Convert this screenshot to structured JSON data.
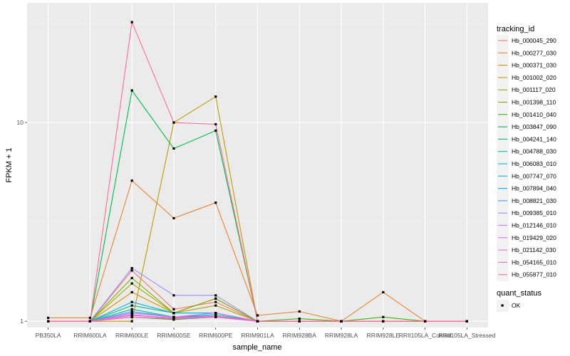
{
  "chart_data": {
    "type": "line",
    "xlabel": "sample_name",
    "ylabel": "FPKM + 1",
    "y_scale": "log10",
    "ylim": [
      0.93,
      40
    ],
    "y_ticks": [
      1,
      10
    ],
    "y_tick_labels": [
      "1",
      "10"
    ],
    "grid": true,
    "legend_position": "right",
    "categories": [
      "PB350LA",
      "RRIM600LA",
      "RRIM600LE",
      "RRIM600SE",
      "RRIM600PE",
      "RRIM901LA",
      "RRIM928BA",
      "RRIM928LA",
      "RRIM928LE",
      "RRII105LA_Control",
      "RRII105LA_Stressed"
    ],
    "color_legend_title": "tracking_id",
    "shape_legend_title": "quant_status",
    "shape_legend_items": [
      "OK"
    ],
    "series": [
      {
        "name": "Hb_000045_290",
        "color": "#F8766D",
        "values": [
          1.0,
          1.0,
          1.8,
          1.15,
          1.25,
          1.0,
          1.0,
          1.0,
          1.0,
          1.0,
          1.0
        ]
      },
      {
        "name": "Hb_000277_030",
        "color": "#EA8331",
        "values": [
          1.04,
          1.04,
          5.1,
          3.3,
          3.95,
          1.07,
          1.12,
          1.0,
          1.4,
          1.0,
          1.0
        ]
      },
      {
        "name": "Hb_000371_030",
        "color": "#D89000",
        "values": [
          1.0,
          1.0,
          1.4,
          1.1,
          1.3,
          1.0,
          1.0,
          1.0,
          1.0,
          1.0,
          1.0
        ]
      },
      {
        "name": "Hb_001002_020",
        "color": "#C09B00",
        "values": [
          1.0,
          1.0,
          1.0,
          10.0,
          13.5,
          1.0,
          1.0,
          1.0,
          1.0,
          1.0,
          1.0
        ]
      },
      {
        "name": "Hb_001117_020",
        "color": "#A3A500",
        "values": [
          1.0,
          1.0,
          1.55,
          1.1,
          1.2,
          1.0,
          1.0,
          1.0,
          1.0,
          1.0,
          1.0
        ]
      },
      {
        "name": "Hb_001398_110",
        "color": "#7CAE00",
        "values": [
          1.0,
          1.0,
          1.65,
          1.1,
          1.3,
          1.0,
          1.0,
          1.0,
          1.0,
          1.0,
          1.0
        ]
      },
      {
        "name": "Hb_001410_040",
        "color": "#39B600",
        "values": [
          1.0,
          1.0,
          1.05,
          1.02,
          1.05,
          1.0,
          1.03,
          1.0,
          1.05,
          1.0,
          1.0
        ]
      },
      {
        "name": "Hb_003847_090",
        "color": "#00BB4E",
        "values": [
          1.0,
          1.0,
          14.5,
          7.4,
          9.1,
          1.0,
          1.0,
          1.0,
          1.0,
          1.0,
          1.0
        ]
      },
      {
        "name": "Hb_004241_140",
        "color": "#00BF7D",
        "values": [
          1.0,
          1.0,
          1.2,
          1.1,
          1.1,
          1.0,
          1.0,
          1.0,
          1.0,
          1.0,
          1.0
        ]
      },
      {
        "name": "Hb_004788_030",
        "color": "#00C1A3",
        "values": [
          1.0,
          1.0,
          1.15,
          1.05,
          1.08,
          1.0,
          1.0,
          1.0,
          1.0,
          1.0,
          1.0
        ]
      },
      {
        "name": "Hb_006083_010",
        "color": "#00BFC4",
        "values": [
          1.0,
          1.0,
          1.1,
          1.05,
          1.06,
          1.0,
          1.0,
          1.0,
          1.0,
          1.0,
          1.0
        ]
      },
      {
        "name": "Hb_007747_070",
        "color": "#00BAE0",
        "values": [
          1.0,
          1.0,
          1.1,
          1.05,
          1.06,
          1.0,
          1.0,
          1.0,
          1.0,
          1.0,
          1.0
        ]
      },
      {
        "name": "Hb_007894_040",
        "color": "#00B0F6",
        "values": [
          1.0,
          1.0,
          1.25,
          1.1,
          1.1,
          1.0,
          1.0,
          1.0,
          1.0,
          1.0,
          1.0
        ]
      },
      {
        "name": "Hb_008821_030",
        "color": "#35A2FF",
        "values": [
          1.0,
          1.0,
          1.12,
          1.05,
          1.05,
          1.0,
          1.0,
          1.0,
          1.0,
          1.0,
          1.0
        ]
      },
      {
        "name": "Hb_009385_010",
        "color": "#9590FF",
        "values": [
          1.0,
          1.0,
          1.85,
          1.35,
          1.35,
          1.0,
          1.0,
          1.0,
          1.0,
          1.0,
          1.0
        ]
      },
      {
        "name": "Hb_012146_010",
        "color": "#C77CFF",
        "values": [
          1.0,
          1.0,
          1.08,
          1.03,
          1.05,
          1.0,
          1.0,
          1.0,
          1.0,
          1.0,
          1.0
        ]
      },
      {
        "name": "Hb_019429_020",
        "color": "#E76BF3",
        "values": [
          1.0,
          1.0,
          1.1,
          1.05,
          1.1,
          1.0,
          1.0,
          1.0,
          1.0,
          1.0,
          1.0
        ]
      },
      {
        "name": "Hb_021142_030",
        "color": "#FA62DB",
        "values": [
          1.0,
          1.0,
          1.05,
          1.03,
          1.05,
          1.0,
          1.0,
          1.0,
          1.0,
          1.0,
          1.0
        ]
      },
      {
        "name": "Hb_054165_010",
        "color": "#FF62BC",
        "values": [
          1.0,
          1.0,
          1.07,
          1.04,
          1.06,
          1.0,
          1.0,
          1.0,
          1.0,
          1.0,
          1.0
        ]
      },
      {
        "name": "Hb_055877_010",
        "color": "#FF6C91",
        "values": [
          1.0,
          1.0,
          32.0,
          10.0,
          9.8,
          1.0,
          1.0,
          1.0,
          1.0,
          1.0,
          1.0
        ]
      }
    ]
  }
}
